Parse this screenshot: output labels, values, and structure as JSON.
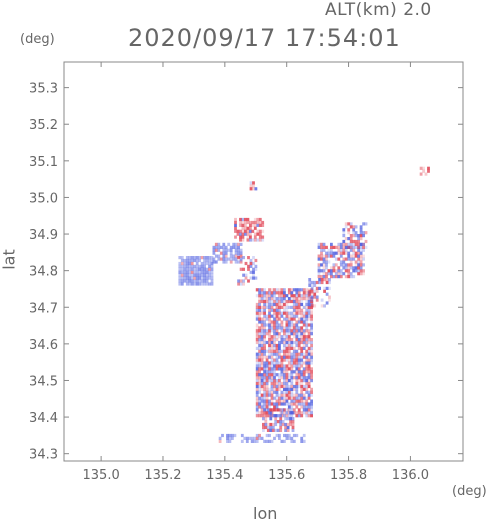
{
  "header": {
    "alt_label": "ALT(km)  2.0",
    "timestamp": "2020/09/17  17:54:01"
  },
  "chart_data": {
    "type": "heatmap",
    "title": "2020/09/17  17:54:01",
    "subtitle": "ALT(km)  2.0",
    "xlabel": "lon",
    "ylabel": "lat",
    "x_unit": "(deg)",
    "y_unit": "(deg)",
    "xlim": [
      134.88,
      136.17
    ],
    "ylim": [
      34.28,
      35.37
    ],
    "x_ticks": [
      135.0,
      135.2,
      135.4,
      135.6,
      135.8,
      136.0
    ],
    "x_tick_labels": [
      "135.0",
      "135.2",
      "135.4",
      "135.6",
      "135.8",
      "136.0"
    ],
    "y_ticks": [
      34.3,
      34.4,
      34.5,
      34.6,
      34.7,
      34.8,
      34.9,
      35.0,
      35.1,
      35.2,
      35.3
    ],
    "y_tick_labels": [
      "34.3",
      "34.4",
      "34.5",
      "34.6",
      "34.7",
      "34.8",
      "34.9",
      "35.0",
      "35.1",
      "35.2",
      "35.3"
    ],
    "grid": false,
    "colormap": "blue-white-red diverging",
    "colors": {
      "negative": "#5060e0",
      "positive": "#e04050",
      "frame": "#888888",
      "text": "#666666"
    },
    "regions": [
      {
        "lon": [
          135.5,
          135.68
        ],
        "lat": [
          34.4,
          34.75
        ],
        "sign": 0,
        "density": 0.85
      },
      {
        "lon": [
          135.52,
          135.62
        ],
        "lat": [
          34.36,
          34.42
        ],
        "sign": 0,
        "density": 0.6
      },
      {
        "lon": [
          135.25,
          135.36
        ],
        "lat": [
          34.76,
          34.84
        ],
        "sign": -1,
        "density": 0.95
      },
      {
        "lon": [
          135.36,
          135.45
        ],
        "lat": [
          34.82,
          34.87
        ],
        "sign": -1,
        "density": 0.6
      },
      {
        "lon": [
          135.43,
          135.52
        ],
        "lat": [
          34.88,
          34.94
        ],
        "sign": 1,
        "density": 0.8
      },
      {
        "lon": [
          135.7,
          135.85
        ],
        "lat": [
          34.78,
          34.87
        ],
        "sign": 0,
        "density": 0.7
      },
      {
        "lon": [
          135.78,
          135.86
        ],
        "lat": [
          34.86,
          34.93
        ],
        "sign": 0,
        "density": 0.6
      },
      {
        "lon": [
          135.67,
          135.74
        ],
        "lat": [
          34.7,
          34.78
        ],
        "sign": 0,
        "density": 0.5
      },
      {
        "lon": [
          135.44,
          135.5
        ],
        "lat": [
          34.76,
          34.84
        ],
        "sign": 0,
        "density": 0.4
      },
      {
        "lon": [
          135.38,
          135.66
        ],
        "lat": [
          34.33,
          34.35
        ],
        "sign": -1,
        "density": 0.5
      },
      {
        "lon": [
          135.48,
          135.5
        ],
        "lat": [
          35.02,
          35.04
        ],
        "sign": 1,
        "density": 0.8
      },
      {
        "lon": [
          136.03,
          136.07
        ],
        "lat": [
          35.06,
          35.08
        ],
        "sign": 1,
        "density": 0.6
      }
    ]
  }
}
